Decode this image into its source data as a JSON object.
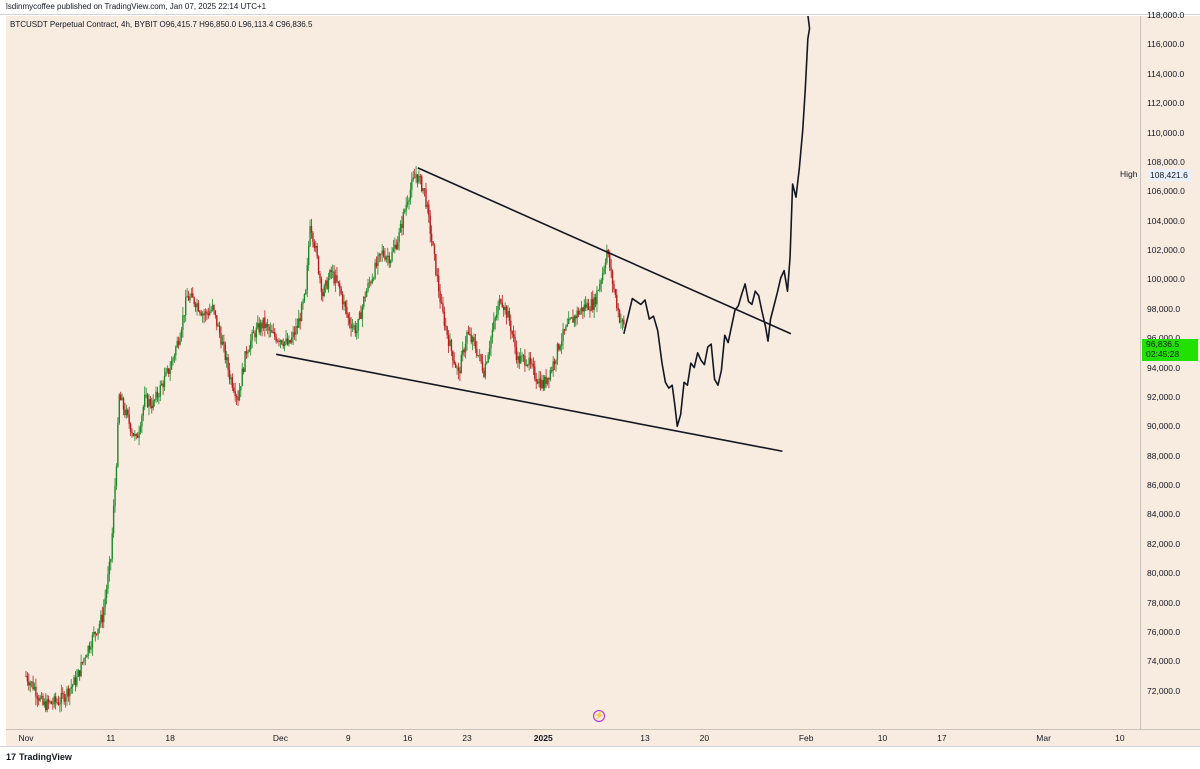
{
  "header": {
    "publish_text": "lsdinmycoffee published on TradingView.com, Jan 07, 2025 22:14 UTC+1"
  },
  "legend": {
    "text": "BTCUSDT Perpetual Contract, 4h, BYBIT  O96,415.7  H96,850.0  L96,113.4  C96,836.5"
  },
  "chart_data": {
    "type": "candlestick",
    "title": "BTCUSDT Perpetual Contract, 4h, BYBIT",
    "ohlc_last": {
      "open": 96415.7,
      "high": 96850.0,
      "low": 96113.4,
      "close": 96836.5
    },
    "ylim": [
      70500,
      119800
    ],
    "y_ticks": [
      "72,000.0",
      "74,000.0",
      "76,000.0",
      "78,000.0",
      "80,000.0",
      "82,000.0",
      "84,000.0",
      "86,000.0",
      "88,000.0",
      "90,000.0",
      "92,000.0",
      "94,000.0",
      "96,000.0",
      "98,000.0",
      "100,000.0",
      "102,000.0",
      "104,000.0",
      "106,000.0",
      "108,000.0",
      "110,000.0",
      "112,000.0",
      "114,000.0",
      "116,000.0",
      "118,000.0"
    ],
    "x_ticks": [
      {
        "label": "Nov",
        "day": 0,
        "bold": false
      },
      {
        "label": "11",
        "day": 10,
        "bold": false
      },
      {
        "label": "18",
        "day": 17,
        "bold": false
      },
      {
        "label": "Dec",
        "day": 30,
        "bold": false
      },
      {
        "label": "9",
        "day": 38,
        "bold": false
      },
      {
        "label": "16",
        "day": 45,
        "bold": false
      },
      {
        "label": "23",
        "day": 52,
        "bold": false
      },
      {
        "label": "2025",
        "day": 61,
        "bold": true
      },
      {
        "label": "13",
        "day": 73,
        "bold": false
      },
      {
        "label": "20",
        "day": 80,
        "bold": false
      },
      {
        "label": "Feb",
        "day": 92,
        "bold": false
      },
      {
        "label": "10",
        "day": 101,
        "bold": false
      },
      {
        "label": "17",
        "day": 108,
        "bold": false
      },
      {
        "label": "Mar",
        "day": 120,
        "bold": false
      },
      {
        "label": "10",
        "day": 129,
        "bold": false
      }
    ],
    "price_path": [
      [
        0,
        73000
      ],
      [
        1,
        72200
      ],
      [
        2,
        71000
      ],
      [
        4,
        71300
      ],
      [
        6,
        72800
      ],
      [
        7,
        74500
      ],
      [
        8,
        75800
      ],
      [
        9,
        77000
      ],
      [
        10,
        81000
      ],
      [
        10.7,
        88000
      ],
      [
        11,
        92000
      ],
      [
        12,
        90500
      ],
      [
        13,
        89000
      ],
      [
        14,
        91800
      ],
      [
        15,
        91500
      ],
      [
        16,
        92800
      ],
      [
        17,
        94000
      ],
      [
        18,
        96000
      ],
      [
        19,
        98800
      ],
      [
        20,
        98500
      ],
      [
        21,
        97600
      ],
      [
        22,
        98000
      ],
      [
        23,
        96000
      ],
      [
        24,
        93500
      ],
      [
        25,
        92000
      ],
      [
        26,
        95200
      ],
      [
        27,
        96400
      ],
      [
        28,
        97000
      ],
      [
        29,
        96200
      ],
      [
        30,
        96000
      ],
      [
        31,
        95500
      ],
      [
        32,
        96800
      ],
      [
        33,
        99000
      ],
      [
        33.5,
        104000
      ],
      [
        34,
        102500
      ],
      [
        35,
        99000
      ],
      [
        36,
        100500
      ],
      [
        37,
        99300
      ],
      [
        38,
        97300
      ],
      [
        39,
        96500
      ],
      [
        40,
        99000
      ],
      [
        41,
        100500
      ],
      [
        42,
        101800
      ],
      [
        43,
        101500
      ],
      [
        44,
        103000
      ],
      [
        45,
        105600
      ],
      [
        46,
        107200
      ],
      [
        47,
        106000
      ],
      [
        48,
        102000
      ],
      [
        49,
        98000
      ],
      [
        50,
        95500
      ],
      [
        51,
        93500
      ],
      [
        52,
        96300
      ],
      [
        53,
        95400
      ],
      [
        54,
        93800
      ],
      [
        55,
        96500
      ],
      [
        56,
        98800
      ],
      [
        57,
        97200
      ],
      [
        58,
        94500
      ],
      [
        59,
        94600
      ],
      [
        60,
        93500
      ],
      [
        61,
        92800
      ],
      [
        62,
        94000
      ],
      [
        63,
        95800
      ],
      [
        64,
        96900
      ],
      [
        65,
        97700
      ],
      [
        66,
        98200
      ],
      [
        67,
        98400
      ],
      [
        68,
        100500
      ],
      [
        68.5,
        102000
      ],
      [
        69,
        100300
      ],
      [
        70,
        97400
      ],
      [
        70.5,
        96800
      ]
    ],
    "price_path_units": "x = days since the Nov tick, y = USD",
    "high_marker": {
      "label": "High",
      "value": "108,421.6",
      "price": 108421.6
    },
    "last_price": {
      "value": "96,836.5",
      "countdown": "02:45:28",
      "price": 96836.5
    },
    "trendlines": [
      {
        "name": "upper",
        "from": [
          46.2,
          107600
        ],
        "to": [
          90.2,
          96300
        ]
      },
      {
        "name": "lower",
        "from": [
          29.5,
          94900
        ],
        "to": [
          89.2,
          88300
        ]
      }
    ],
    "projection": [
      [
        70.5,
        96300
      ],
      [
        71.5,
        98700
      ],
      [
        72.5,
        98300
      ],
      [
        73,
        98600
      ],
      [
        73.5,
        97300
      ],
      [
        74,
        97500
      ],
      [
        74.5,
        96500
      ],
      [
        75,
        94300
      ],
      [
        75.4,
        93000
      ],
      [
        75.8,
        92600
      ],
      [
        76.2,
        92800
      ],
      [
        76.5,
        91500
      ],
      [
        76.8,
        90000
      ],
      [
        77.2,
        90800
      ],
      [
        77.6,
        93000
      ],
      [
        78,
        92800
      ],
      [
        78.4,
        94300
      ],
      [
        78.8,
        94000
      ],
      [
        79.2,
        95000
      ],
      [
        79.6,
        94500
      ],
      [
        80,
        94200
      ],
      [
        80.4,
        95400
      ],
      [
        80.8,
        95600
      ],
      [
        81.2,
        93200
      ],
      [
        81.6,
        92800
      ],
      [
        82,
        93800
      ],
      [
        82.4,
        96200
      ],
      [
        82.8,
        95700
      ],
      [
        83.2,
        96800
      ],
      [
        83.6,
        97900
      ],
      [
        84,
        98200
      ],
      [
        84.4,
        99000
      ],
      [
        84.8,
        99700
      ],
      [
        85.2,
        98500
      ],
      [
        85.6,
        98300
      ],
      [
        86,
        99200
      ],
      [
        86.4,
        98900
      ],
      [
        86.8,
        97800
      ],
      [
        87.2,
        96800
      ],
      [
        87.5,
        95800
      ],
      [
        87.8,
        97300
      ],
      [
        88.2,
        98200
      ],
      [
        88.6,
        99100
      ],
      [
        89,
        100100
      ],
      [
        89.4,
        100600
      ],
      [
        89.8,
        99200
      ],
      [
        90.1,
        101500
      ],
      [
        90.4,
        106500
      ],
      [
        90.8,
        105600
      ],
      [
        91.2,
        107600
      ],
      [
        91.6,
        110200
      ],
      [
        91.9,
        113000
      ],
      [
        92.2,
        116400
      ],
      [
        92.4,
        117100
      ],
      [
        92.2,
        118000
      ]
    ]
  },
  "footer": {
    "brand": "TradingView"
  },
  "colors": {
    "bg": "#f8ebdf",
    "candle_up": "#1d8a2a",
    "candle_down": "#b71c1c",
    "drawing": "#131722",
    "price_label": "#22e000"
  }
}
